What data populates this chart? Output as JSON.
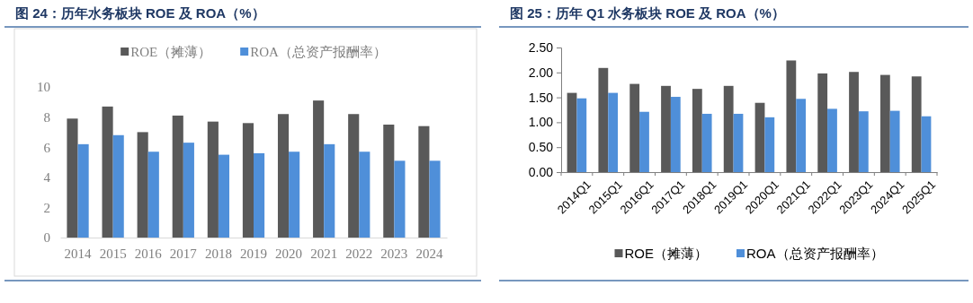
{
  "chart_data": [
    {
      "type": "bar",
      "title": "图 24：历年水务板块 ROE 及 ROA（%）",
      "categories": [
        "2014",
        "2015",
        "2016",
        "2017",
        "2018",
        "2019",
        "2020",
        "2021",
        "2022",
        "2023",
        "2024"
      ],
      "series": [
        {
          "name": "ROE（摊薄）",
          "color": "#595959",
          "values": [
            7.9,
            8.7,
            7.0,
            8.1,
            7.7,
            7.6,
            8.2,
            9.1,
            8.2,
            7.5,
            7.4
          ]
        },
        {
          "name": "ROA（总资产报酬率）",
          "color": "#4f8fd9",
          "values": [
            6.2,
            6.8,
            5.7,
            6.3,
            5.5,
            5.6,
            5.7,
            6.2,
            5.7,
            5.1,
            5.1
          ]
        }
      ],
      "ylim": [
        0,
        10
      ],
      "yticks": [
        0,
        2,
        4,
        6,
        8,
        10
      ],
      "legend": "top",
      "grid": false
    },
    {
      "type": "bar",
      "title": "图 25：历年 Q1 水务板块 ROE 及 ROA（%）",
      "categories": [
        "2014Q1",
        "2015Q1",
        "2016Q1",
        "2017Q1",
        "2018Q1",
        "2019Q1",
        "2020Q1",
        "2021Q1",
        "2022Q1",
        "2023Q1",
        "2024Q1",
        "2025Q1"
      ],
      "series": [
        {
          "name": "ROE（摊薄）",
          "color": "#595959",
          "values": [
            1.59,
            2.09,
            1.77,
            1.73,
            1.67,
            1.73,
            1.39,
            2.24,
            1.98,
            2.01,
            1.95,
            1.92
          ]
        },
        {
          "name": "ROA（总资产报酬率）",
          "color": "#4f8fd9",
          "values": [
            1.48,
            1.59,
            1.21,
            1.51,
            1.17,
            1.17,
            1.1,
            1.47,
            1.27,
            1.22,
            1.23,
            1.12
          ]
        }
      ],
      "ylim": [
        0,
        2.5
      ],
      "yticks": [
        {
          "value": 0,
          "label": "0.00"
        },
        {
          "value": 0.5,
          "label": "0.50"
        },
        {
          "value": 1,
          "label": "1.00"
        },
        {
          "value": 1.5,
          "label": "1.50"
        },
        {
          "value": 2,
          "label": "2.00"
        },
        {
          "value": 2.5,
          "label": "2.50"
        }
      ],
      "legend": "bottom",
      "grid": false
    }
  ]
}
